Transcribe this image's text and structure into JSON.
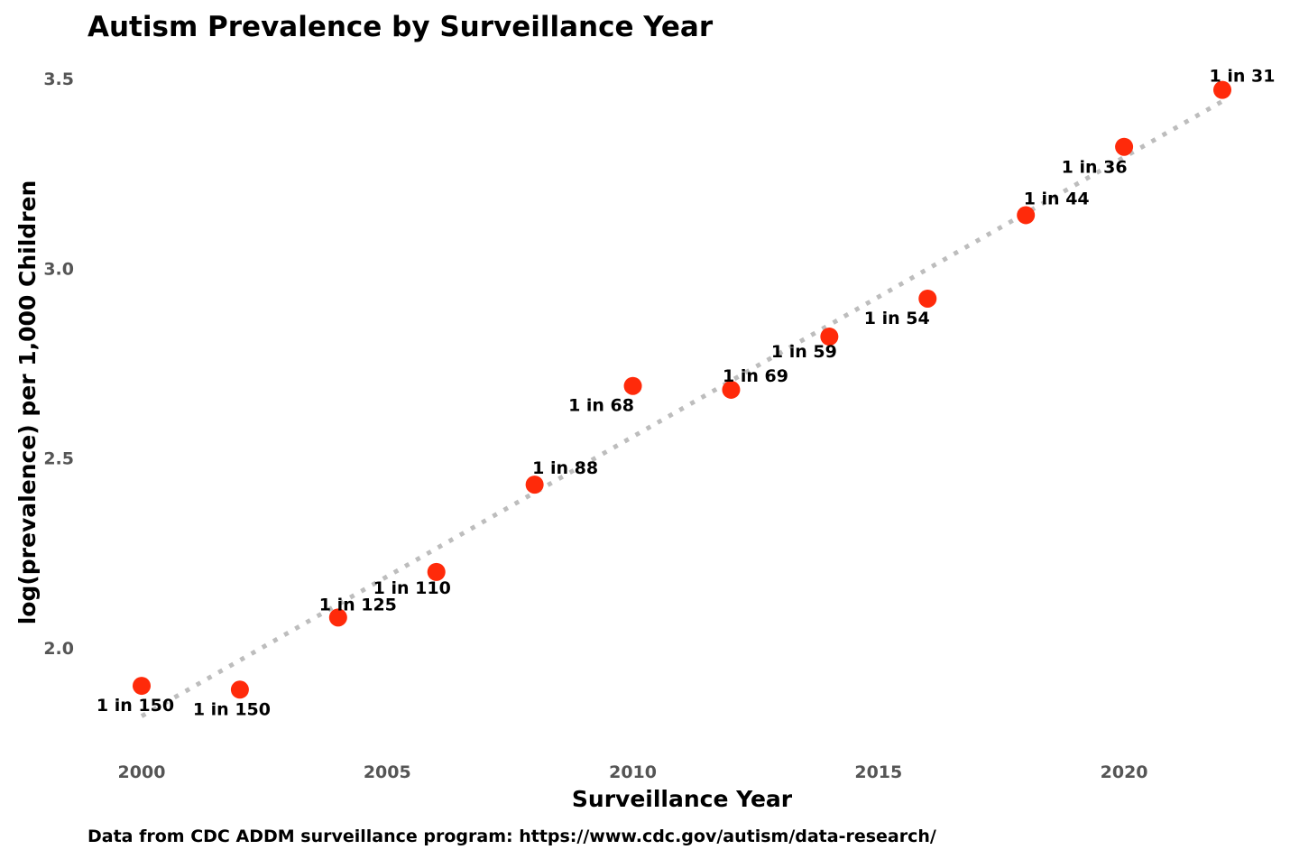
{
  "chart_data": {
    "type": "scatter",
    "title": "Autism Prevalence by Surveillance Year",
    "xlabel": "Surveillance Year",
    "ylabel": "log(prevalence) per 1,000 Children",
    "caption": "Data from CDC ADDM surveillance program: https://www.cdc.gov/autism/data-research/",
    "xlim": [
      1999,
      2023
    ],
    "ylim": [
      1.77,
      3.55
    ],
    "x_ticks": [
      2000,
      2005,
      2010,
      2015,
      2020
    ],
    "y_ticks": [
      2.0,
      2.5,
      3.0,
      3.5
    ],
    "grid": false,
    "legend": "none",
    "point_color": "#ff2a0a",
    "trend_color": "#bdbdbd",
    "trend_line": {
      "x": [
        2000,
        2022
      ],
      "y": [
        1.82,
        3.44
      ],
      "style": "dotted"
    },
    "points": [
      {
        "x": 2000,
        "y": 1.9,
        "label": "1 in 150"
      },
      {
        "x": 2002,
        "y": 1.89,
        "label": "1 in 150"
      },
      {
        "x": 2004,
        "y": 2.08,
        "label": "1 in 125"
      },
      {
        "x": 2006,
        "y": 2.2,
        "label": "1 in 110"
      },
      {
        "x": 2008,
        "y": 2.43,
        "label": "1 in 88"
      },
      {
        "x": 2010,
        "y": 2.69,
        "label": "1 in 68"
      },
      {
        "x": 2012,
        "y": 2.68,
        "label": "1 in 69"
      },
      {
        "x": 2014,
        "y": 2.82,
        "label": "1 in 59"
      },
      {
        "x": 2016,
        "y": 2.92,
        "label": "1 in 54"
      },
      {
        "x": 2018,
        "y": 3.14,
        "label": "1 in 44"
      },
      {
        "x": 2020,
        "y": 3.32,
        "label": "1 in 36"
      },
      {
        "x": 2022,
        "y": 3.47,
        "label": "1 in 31"
      }
    ]
  }
}
